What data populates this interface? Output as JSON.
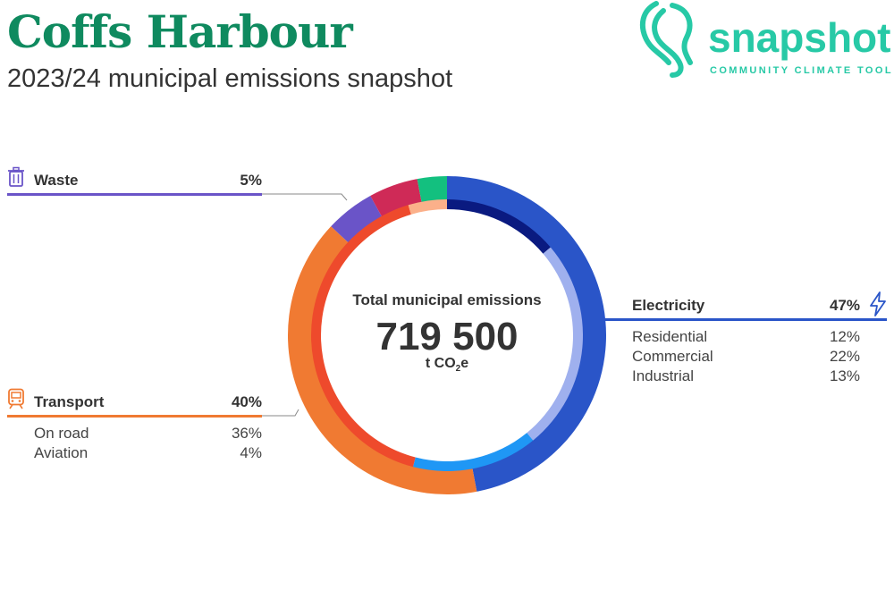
{
  "header": {
    "title": "Coffs Harbour",
    "subtitle": "2023/24 municipal emissions snapshot"
  },
  "logo": {
    "word": "snapshot",
    "tagline": "COMMUNITY CLIMATE TOOL",
    "color": "#27c9a6"
  },
  "center": {
    "label": "Total municipal emissions",
    "value": "719 500",
    "unit_prefix": "t CO",
    "unit_sub": "2",
    "unit_suffix": "e"
  },
  "legend": {
    "waste": {
      "name": "Waste",
      "pct": "5%",
      "color": "#6a54c8",
      "icon": "trash-bin-icon"
    },
    "transport": {
      "name": "Transport",
      "pct": "40%",
      "color": "#f07a32",
      "icon": "train-icon",
      "rows": [
        {
          "name": "On road",
          "pct": "36%"
        },
        {
          "name": "Aviation",
          "pct": "4%"
        }
      ]
    },
    "electricity": {
      "name": "Electricity",
      "pct": "47%",
      "color": "#2a55c8",
      "icon": "lightning-bolt-icon",
      "rows": [
        {
          "name": "Residential",
          "pct": "12%"
        },
        {
          "name": "Commercial",
          "pct": "22%"
        },
        {
          "name": "Industrial",
          "pct": "13%"
        }
      ]
    }
  },
  "chart_data": {
    "type": "pie",
    "style": "donut",
    "total": "719 500",
    "outer_ring": [
      {
        "name": "Electricity",
        "value": 47,
        "color": "#2a55c8"
      },
      {
        "name": "Transport",
        "value": 40,
        "color": "#f07a32"
      },
      {
        "name": "Waste",
        "value": 5,
        "color": "#6a54c8"
      },
      {
        "name": "",
        "value": 5,
        "color": "#cf2a57"
      },
      {
        "name": "",
        "value": 3,
        "color": "#13c07f"
      }
    ],
    "inner_ring": [
      {
        "name": "Residential",
        "value": 12,
        "color": "#0a1a80"
      },
      {
        "name": "Commercial",
        "value": 22,
        "color": "#9fb0ee"
      },
      {
        "name": "Industrial",
        "value": 13,
        "color": "#1f97f5"
      },
      {
        "name": "On road",
        "value": 36,
        "color": "#ee4a2c"
      },
      {
        "name": "Aviation",
        "value": 4,
        "color": "#fbb08a"
      }
    ]
  }
}
